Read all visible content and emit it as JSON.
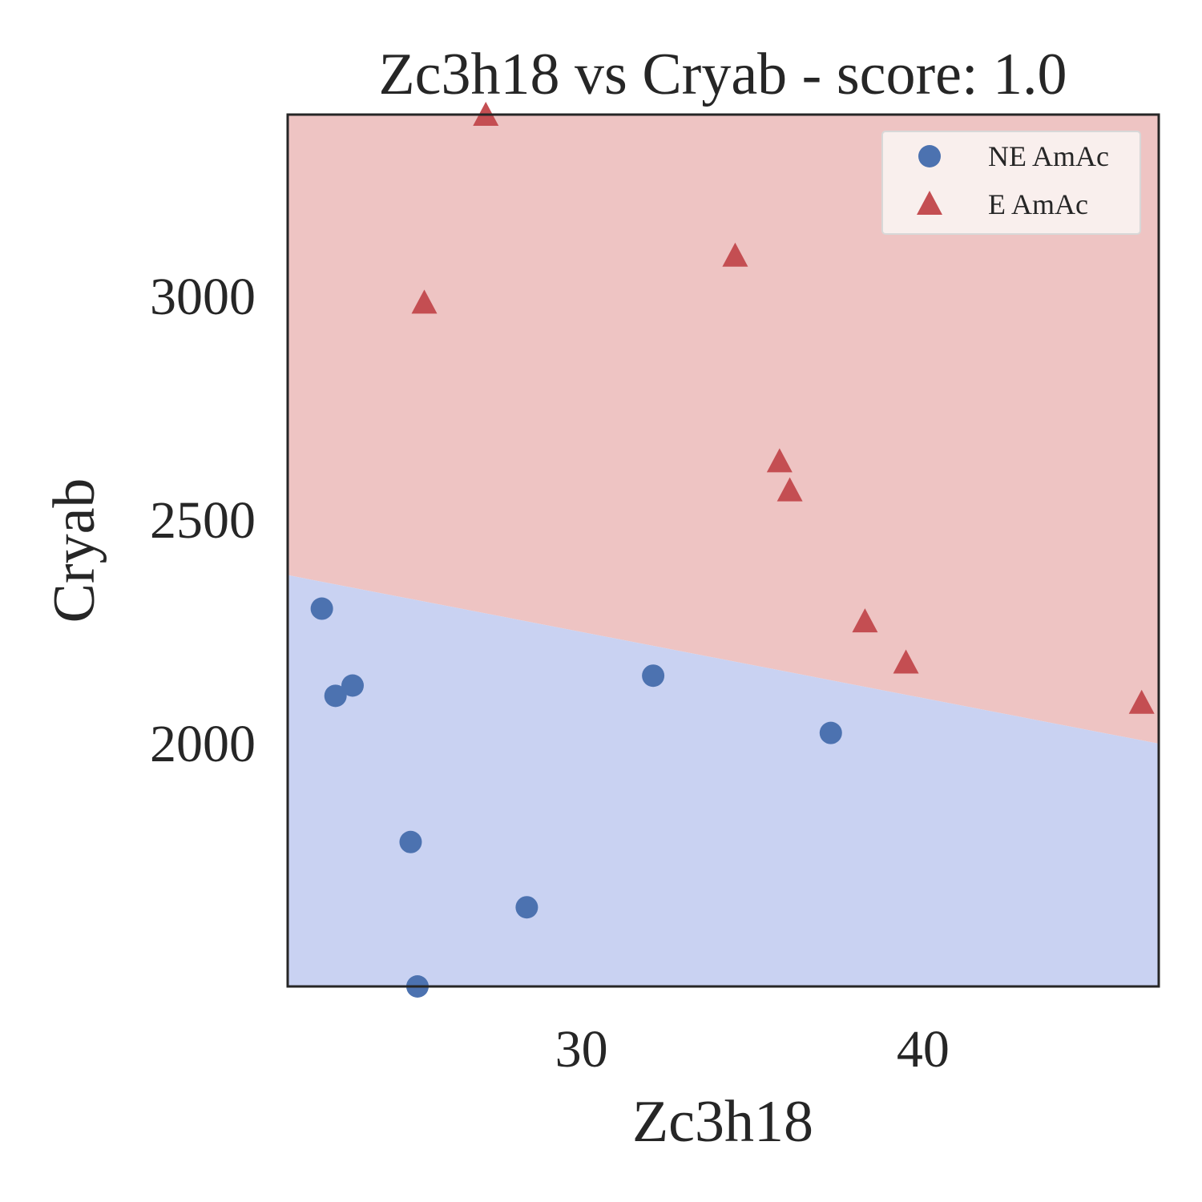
{
  "chart_data": {
    "type": "scatter",
    "title": "Zc3h18 vs Cryab - score: 1.0",
    "xlabel": "Zc3h18",
    "ylabel": "Cryab",
    "xlim": [
      21.4,
      46.9
    ],
    "ylim": [
      1455,
      3405
    ],
    "xticks": [
      30,
      40
    ],
    "yticks": [
      2000,
      2500,
      3000
    ],
    "grid": false,
    "legend_position": "top-right",
    "decision_boundary": {
      "x": [
        21.4,
        46.9
      ],
      "y": [
        2375,
        1998
      ]
    },
    "regions": {
      "above": "#eec4c3",
      "below": "#c9d2f2"
    },
    "series": [
      {
        "name": "NE AmAc",
        "marker": "circle",
        "color": "#4c72b0",
        "points": [
          [
            22.4,
            2300
          ],
          [
            22.8,
            2105
          ],
          [
            23.3,
            2128
          ],
          [
            25.0,
            1778
          ],
          [
            25.2,
            1455
          ],
          [
            28.4,
            1632
          ],
          [
            32.1,
            2150
          ],
          [
            37.3,
            2022
          ]
        ]
      },
      {
        "name": "E AmAc",
        "marker": "triangle",
        "color": "#c44e52",
        "points": [
          [
            25.4,
            2985
          ],
          [
            27.2,
            3405
          ],
          [
            34.5,
            3090
          ],
          [
            35.8,
            2630
          ],
          [
            36.1,
            2565
          ],
          [
            38.3,
            2272
          ],
          [
            39.5,
            2180
          ],
          [
            46.4,
            2090
          ]
        ]
      }
    ]
  }
}
